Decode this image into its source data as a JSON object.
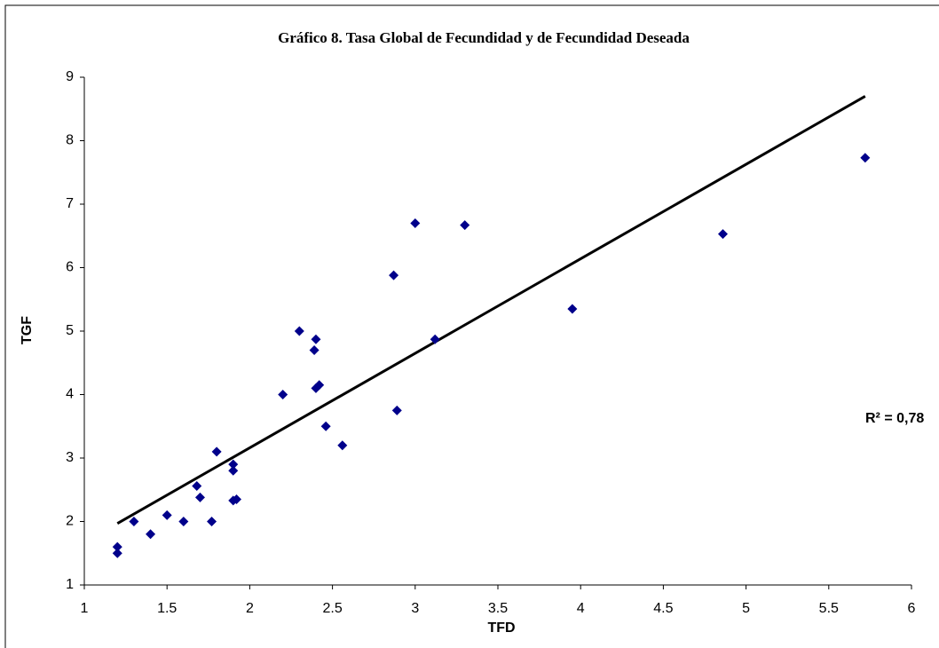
{
  "chart_data": {
    "type": "scatter",
    "title": "Gráfico 8. Tasa Global de Fecundidad  y de Fecundidad Deseada",
    "x_label": "TFD",
    "y_label": "TGF",
    "annotation": "R² = 0,78",
    "color": "#00008b",
    "x": [
      1.2,
      1.2,
      1.3,
      1.4,
      1.5,
      1.6,
      1.68,
      1.7,
      1.77,
      1.8,
      1.9,
      1.9,
      1.9,
      1.92,
      2.2,
      2.3,
      2.39,
      2.4,
      2.4,
      2.42,
      2.46,
      2.56,
      2.87,
      2.89,
      3.0,
      3.12,
      3.3,
      3.95,
      4.86,
      5.72
    ],
    "values": [
      1.6,
      1.5,
      2.0,
      1.8,
      2.1,
      2.0,
      2.56,
      2.38,
      2.0,
      3.1,
      2.9,
      2.8,
      2.33,
      2.35,
      4.0,
      5.0,
      4.7,
      4.87,
      4.1,
      4.15,
      3.5,
      3.2,
      5.88,
      3.75,
      6.7,
      4.87,
      6.67,
      5.35,
      6.53,
      7.73
    ],
    "trendline": {
      "x": [
        1.2,
        5.72
      ],
      "y": [
        1.97,
        8.7
      ],
      "color": "#000000"
    },
    "xlim": [
      1,
      6
    ],
    "xticks": [
      1,
      1.5,
      2,
      2.5,
      3,
      3.5,
      4,
      4.5,
      5,
      5.5,
      6
    ],
    "ylim": [
      1,
      9
    ],
    "yticks": [
      1,
      2,
      3,
      4,
      5,
      6,
      7,
      8,
      9
    ],
    "grid": false
  }
}
